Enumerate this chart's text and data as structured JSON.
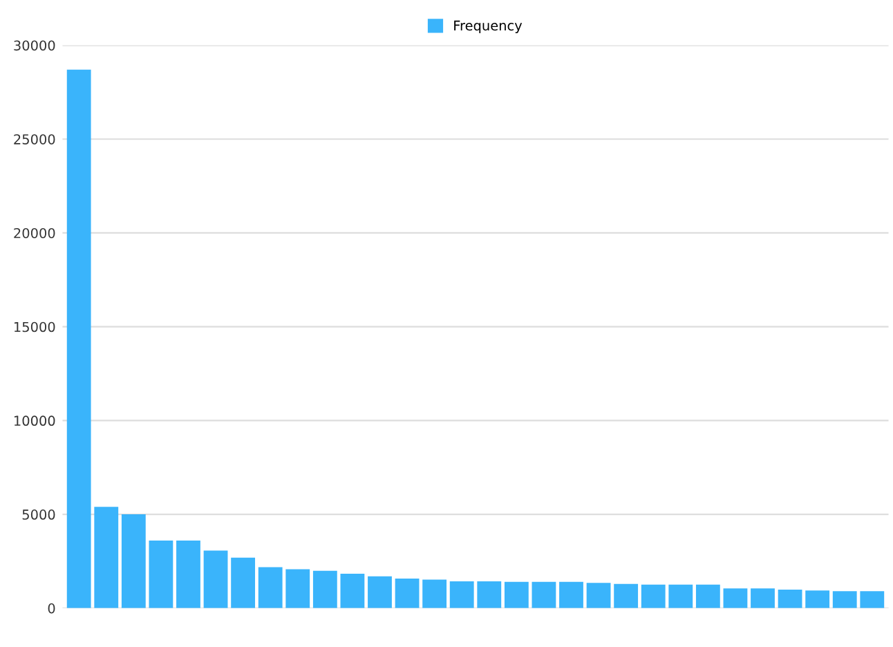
{
  "chart_data": {
    "type": "bar",
    "categories": [
      null,
      null,
      null,
      null,
      null,
      null,
      null,
      null,
      null,
      null,
      null,
      null,
      null,
      null,
      null,
      null,
      null,
      null,
      null,
      null,
      null,
      null,
      null,
      null,
      null,
      null,
      null,
      null,
      null,
      null
    ],
    "series": [
      {
        "name": "Frequency",
        "color": "#3ab4fb",
        "values": [
          28700,
          5400,
          5000,
          3600,
          3600,
          3070,
          2690,
          2190,
          2080,
          1990,
          1840,
          1700,
          1580,
          1520,
          1430,
          1430,
          1400,
          1400,
          1400,
          1350,
          1290,
          1260,
          1260,
          1260,
          1050,
          1050,
          990,
          940,
          910,
          910
        ]
      }
    ],
    "ylim": [
      0,
      30000
    ],
    "yticks": [
      0,
      5000,
      10000,
      15000,
      20000,
      25000,
      30000
    ],
    "grid": "y",
    "legend": "top"
  }
}
